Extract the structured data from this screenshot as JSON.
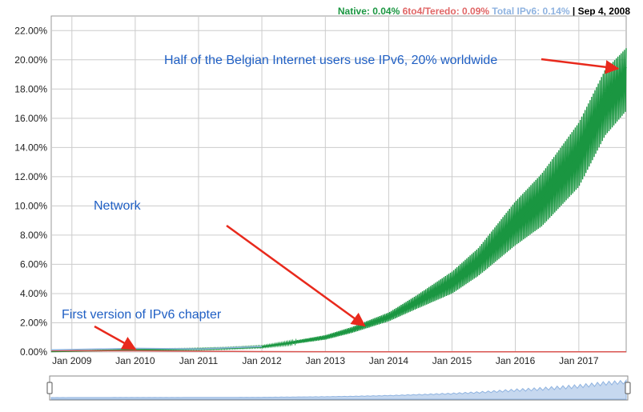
{
  "legend": {
    "native": "Native: 0.04%",
    "sixto4": "6to4/Teredo: 0.09%",
    "total": "Total IPv6: 0.14%",
    "sep": "|",
    "date": "Sep 4, 2008"
  },
  "colors": {
    "native": "#1a9641",
    "sixto4": "#d9534f",
    "total": "#8fb3e0",
    "annotation": "#1f5fc4",
    "arrow": "#e8291c",
    "grid": "#cccccc"
  },
  "chart_data": {
    "type": "area",
    "title": "",
    "xlabel": "",
    "ylabel": "",
    "x_ticks": [
      "Jan 2009",
      "Jan 2010",
      "Jan 2011",
      "Jan 2012",
      "Jan 2013",
      "Jan 2014",
      "Jan 2015",
      "Jan 2016",
      "Jan 2017"
    ],
    "y_ticks": [
      "0.00%",
      "2.00%",
      "4.00%",
      "6.00%",
      "8.00%",
      "10.00%",
      "12.00%",
      "14.00%",
      "16.00%",
      "18.00%",
      "20.00%",
      "22.00%"
    ],
    "ylim": [
      0,
      23
    ],
    "xlim": [
      "2008-09-04",
      "2017-10-01"
    ],
    "grid": true,
    "legend_position": "top-right",
    "series": [
      {
        "name": "Native",
        "points": [
          [
            "2008-09-04",
            0.04
          ],
          [
            "2009-06-01",
            0.1
          ],
          [
            "2010-01-01",
            0.15
          ],
          [
            "2011-01-01",
            0.2
          ],
          [
            "2011-06-01",
            0.25
          ],
          [
            "2012-01-01",
            0.35
          ],
          [
            "2012-06-01",
            0.6
          ],
          [
            "2013-01-01",
            1.0
          ],
          [
            "2013-06-01",
            1.5
          ],
          [
            "2014-01-01",
            2.4
          ],
          [
            "2014-06-01",
            3.4
          ],
          [
            "2015-01-01",
            4.8
          ],
          [
            "2015-06-01",
            6.2
          ],
          [
            "2016-01-01",
            8.8
          ],
          [
            "2016-06-01",
            10.5
          ],
          [
            "2017-01-01",
            13.5
          ],
          [
            "2017-06-01",
            17.0
          ],
          [
            "2017-10-01",
            19.5
          ]
        ],
        "band_low": [
          [
            "2008-09-04",
            0.03
          ],
          [
            "2009-06-01",
            0.08
          ],
          [
            "2010-01-01",
            0.12
          ],
          [
            "2011-01-01",
            0.15
          ],
          [
            "2011-06-01",
            0.2
          ],
          [
            "2012-01-01",
            0.3
          ],
          [
            "2012-06-01",
            0.5
          ],
          [
            "2013-01-01",
            0.85
          ],
          [
            "2013-06-01",
            1.3
          ],
          [
            "2014-01-01",
            2.1
          ],
          [
            "2014-06-01",
            2.9
          ],
          [
            "2015-01-01",
            4.0
          ],
          [
            "2015-06-01",
            5.2
          ],
          [
            "2016-01-01",
            7.3
          ],
          [
            "2016-06-01",
            8.6
          ],
          [
            "2017-01-01",
            11.3
          ],
          [
            "2017-06-01",
            14.8
          ],
          [
            "2017-10-01",
            16.5
          ]
        ],
        "band_high": [
          [
            "2008-09-04",
            0.05
          ],
          [
            "2009-06-01",
            0.12
          ],
          [
            "2010-01-01",
            0.18
          ],
          [
            "2011-01-01",
            0.25
          ],
          [
            "2011-06-01",
            0.3
          ],
          [
            "2012-01-01",
            0.42
          ],
          [
            "2012-06-01",
            0.7
          ],
          [
            "2013-01-01",
            1.15
          ],
          [
            "2013-06-01",
            1.7
          ],
          [
            "2014-01-01",
            2.7
          ],
          [
            "2014-06-01",
            3.8
          ],
          [
            "2015-01-01",
            5.5
          ],
          [
            "2015-06-01",
            7.1
          ],
          [
            "2016-01-01",
            10.3
          ],
          [
            "2016-06-01",
            12.2
          ],
          [
            "2017-01-01",
            15.7
          ],
          [
            "2017-06-01",
            19.3
          ],
          [
            "2017-10-01",
            20.8
          ]
        ]
      },
      {
        "name": "6to4/Teredo",
        "points": [
          [
            "2008-09-04",
            0.09
          ],
          [
            "2010-01-01",
            0.08
          ],
          [
            "2012-01-01",
            0.03
          ],
          [
            "2014-01-01",
            0.01
          ],
          [
            "2017-10-01",
            0.01
          ]
        ]
      },
      {
        "name": "Total IPv6",
        "points": [
          [
            "2008-09-04",
            0.14
          ],
          [
            "2010-01-01",
            0.25
          ],
          [
            "2011-01-01",
            0.2
          ],
          [
            "2012-01-01",
            0.38
          ],
          [
            "2017-10-01",
            19.5
          ]
        ]
      }
    ],
    "annotations": [
      {
        "text": "Half of the Belgian Internet users use IPv6, 20% worldwide",
        "arrow_to": [
          "2017-08-15",
          19.4
        ]
      },
      {
        "text": "Network",
        "arrow_to": [
          "2013-08-15",
          1.8
        ]
      },
      {
        "text": "First version of IPv6 chapter",
        "arrow_to": [
          "2010-01-01",
          0.2
        ]
      }
    ]
  }
}
